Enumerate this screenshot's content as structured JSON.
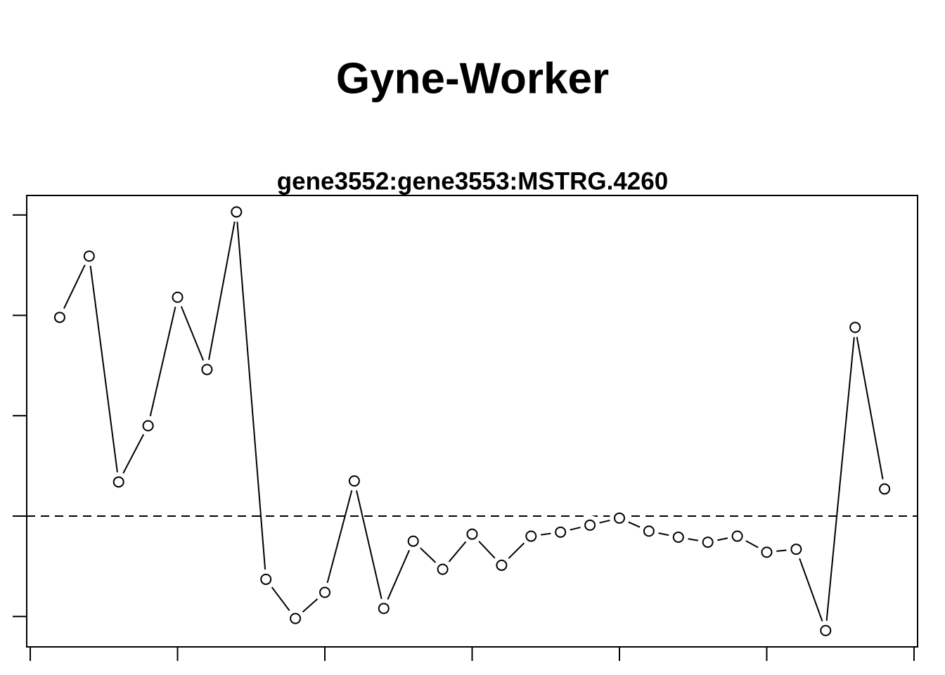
{
  "chart_data": {
    "type": "line",
    "title": "Gyne-Worker",
    "subtitle": "gene3552:gene3553:MSTRG.4260",
    "x": [
      1,
      2,
      3,
      4,
      5,
      6,
      7,
      8,
      9,
      10,
      11,
      12,
      13,
      14,
      15,
      16,
      17,
      18,
      19,
      20,
      21,
      22,
      23,
      24,
      25,
      26,
      27,
      28,
      29
    ],
    "series": [
      {
        "color": "#000000",
        "values": [
          1.98,
          2.59,
          0.34,
          0.9,
          2.18,
          1.46,
          3.03,
          -0.63,
          -1.02,
          -0.76,
          0.35,
          -0.92,
          -0.25,
          -0.53,
          -0.18,
          -0.49,
          -0.2,
          -0.16,
          -0.09,
          -0.02,
          -0.15,
          -0.21,
          -0.26,
          -0.2,
          -0.36,
          -0.33,
          -1.14,
          1.88,
          0.27
        ]
      }
    ],
    "xlim": [
      -0.12,
      30.12
    ],
    "xticks": [
      0,
      5,
      10,
      15,
      20,
      25,
      30
    ],
    "ylim": [
      -1.303,
      3.194
    ],
    "yticks": [
      -1,
      0,
      1,
      2,
      3
    ],
    "hline": 0,
    "grid": false
  }
}
